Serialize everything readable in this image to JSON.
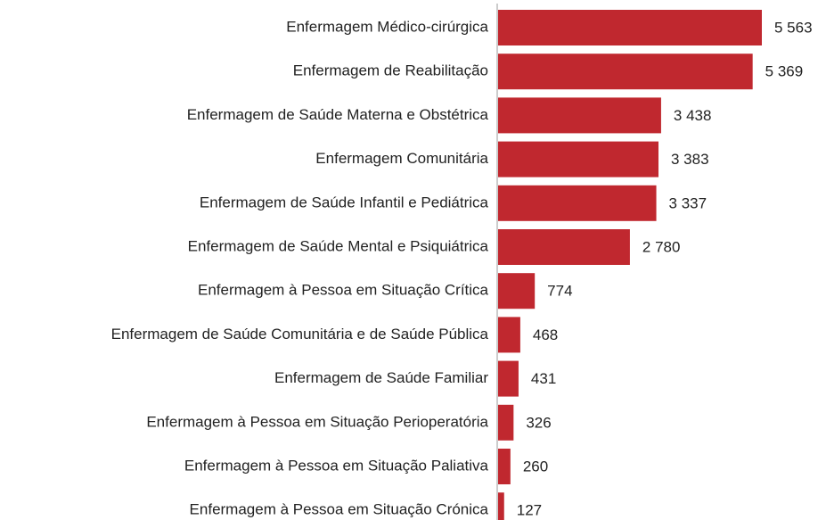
{
  "chart_data": {
    "type": "hbar",
    "color": "#c0282f",
    "categories": [
      "Enfermagem Médico-cirúrgica",
      "Enfermagem de Reabilitação",
      "Enfermagem de Saúde Materna e Obstétrica",
      "Enfermagem Comunitária",
      "Enfermagem de Saúde Infantil e Pediátrica",
      "Enfermagem de Saúde Mental e Psiquiátrica",
      "Enfermagem à Pessoa em Situação Crítica",
      "Enfermagem de Saúde Comunitária e de Saúde Pública",
      "Enfermagem de Saúde Familiar",
      "Enfermagem à Pessoa em Situação Perioperatória",
      "Enfermagem à Pessoa em Situação Paliativa",
      "Enfermagem à Pessoa em Situação Crónica"
    ],
    "values": [
      5563,
      5369,
      3438,
      3383,
      3337,
      2780,
      774,
      468,
      431,
      326,
      260,
      127
    ],
    "value_labels": [
      "5 563",
      "5 369",
      "3 438",
      "3 383",
      "3 337",
      "2 780",
      "774",
      "468",
      "431",
      "326",
      "260",
      "127"
    ]
  }
}
